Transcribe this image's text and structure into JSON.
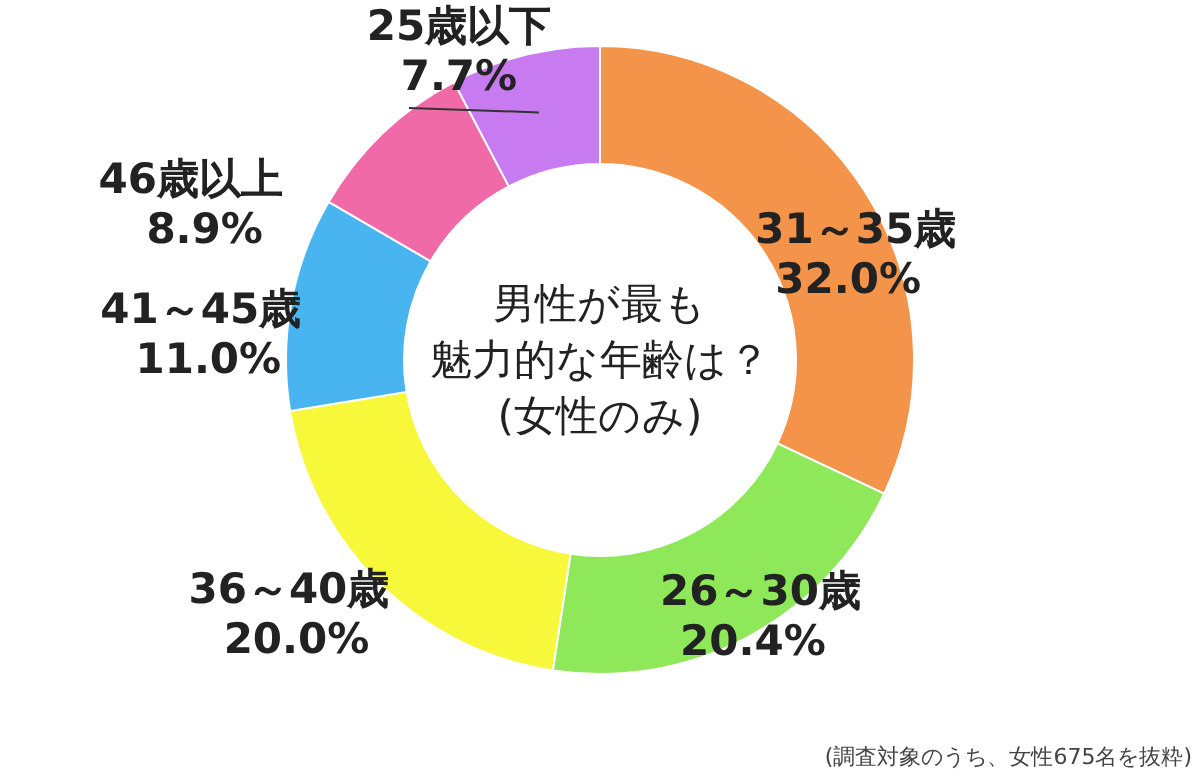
{
  "chart_data": {
    "type": "donut",
    "title": "男性が最も魅力的な年齢は？",
    "subtitle": "(女性のみ)",
    "categories": [
      "31～35歳",
      "26～30歳",
      "36～40歳",
      "41～45歳",
      "46歳以上",
      "25歳以下"
    ],
    "values": [
      32.0,
      20.4,
      20.0,
      11.0,
      8.9,
      7.7
    ],
    "colors": [
      "#f4934a",
      "#8ee85a",
      "#f8f83a",
      "#48b4f0",
      "#f06aa8",
      "#c87af0"
    ],
    "value_labels": [
      "32.0%",
      "20.4%",
      "20.0%",
      "11.0%",
      "8.9%",
      "7.7%"
    ],
    "annotations": [
      "(調査対象のうち、女性675名を抜粋)"
    ]
  }
}
